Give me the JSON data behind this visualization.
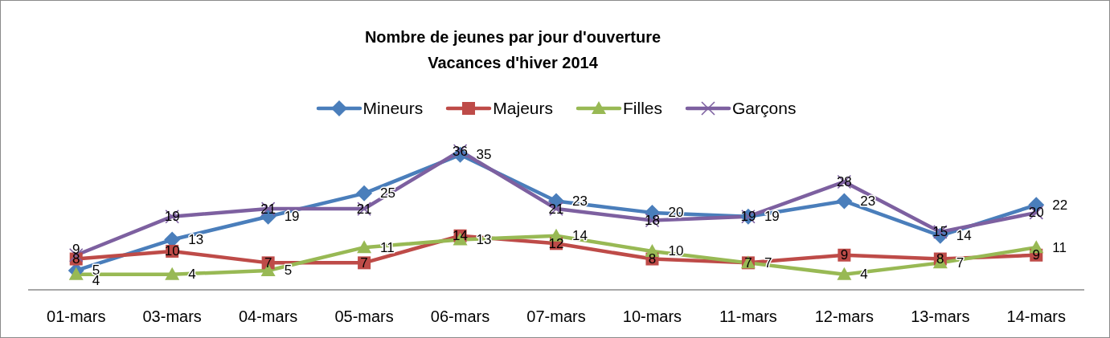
{
  "chart_data": {
    "type": "line",
    "title": "Nombre de jeunes par jour d'ouverture",
    "subtitle": "Vacances d'hiver 2014",
    "categories": [
      "01-mars",
      "03-mars",
      "04-mars",
      "05-mars",
      "06-mars",
      "07-mars",
      "10-mars",
      "11-mars",
      "12-mars",
      "13-mars",
      "14-mars"
    ],
    "series": [
      {
        "name": "Mineurs",
        "color": "#4a7ebb",
        "marker": "diamond",
        "values": [
          5,
          13,
          19,
          25,
          35,
          23,
          20,
          19,
          23,
          14,
          22
        ]
      },
      {
        "name": "Majeurs",
        "color": "#be4b48",
        "marker": "square",
        "values": [
          8,
          10,
          7,
          7,
          14,
          12,
          8,
          7,
          9,
          8,
          9
        ]
      },
      {
        "name": "Filles",
        "color": "#98b954",
        "marker": "triangle",
        "values": [
          4,
          4,
          5,
          11,
          13,
          14,
          10,
          7,
          4,
          7,
          11
        ]
      },
      {
        "name": "Garçons",
        "color": "#7d60a0",
        "marker": "cross",
        "values": [
          9,
          19,
          21,
          21,
          36,
          21,
          18,
          19,
          28,
          15,
          20
        ]
      }
    ],
    "data_labels": true,
    "legend": "top",
    "tick_labels": "x"
  }
}
